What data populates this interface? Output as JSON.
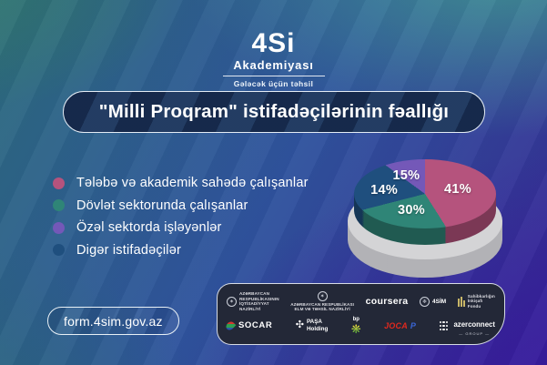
{
  "brand": {
    "name": "4Si",
    "academy": "Akademiyası",
    "tagline": "Gələcək üçün təhsil"
  },
  "banner": {
    "title": "\"Milli Proqram\" istifadəçilərinin fəallığı"
  },
  "chart_data": {
    "type": "pie",
    "style": "3d",
    "title": "\"Milli Proqram\" istifadəçilərinin fəallığı",
    "unit": "%",
    "legend_position": "left",
    "slices": [
      {
        "label": "Tələbə və akademik sahədə çalışanlar",
        "value": 41,
        "color": "#b5537d"
      },
      {
        "label": "Dövlət sektorunda çalışanlar",
        "value": 30,
        "color": "#2f8577"
      },
      {
        "label": "Digər istifadəçilər",
        "value": 14,
        "color": "#1f4f7e"
      },
      {
        "label": "Özəl sektorda işləyənlər",
        "value": 15,
        "color": "#7458b8"
      }
    ],
    "colors": {
      "base_top": "#d4d4d6",
      "base_side": "#b2b2b6"
    }
  },
  "partners_bar": {
    "top": [
      {
        "label": "AZƏRBAYCAN\nRESPUBLİKASININ\nİQTİSADİYYAT\nNAZİRLİYİ"
      },
      {
        "label": "AZƏRBAYCAN RESPUBLİKASI\nELM VƏ TƏHSİL NAZİRLİYİ"
      },
      {
        "label": "coursera"
      },
      {
        "label": "4SİM"
      },
      {
        "label": "Sahibkarlığın\nİnkişafı\nFondu"
      }
    ],
    "bottom": [
      {
        "label": "SOCAR"
      },
      {
        "label": "PAŞA\nHolding"
      },
      {
        "label": "bp"
      },
      {
        "label_red": "JOCA",
        "label_blue": "P"
      },
      {
        "label": "azerconnect",
        "sub": "GROUP"
      }
    ]
  },
  "link": {
    "url": "form.4sim.gov.az"
  }
}
